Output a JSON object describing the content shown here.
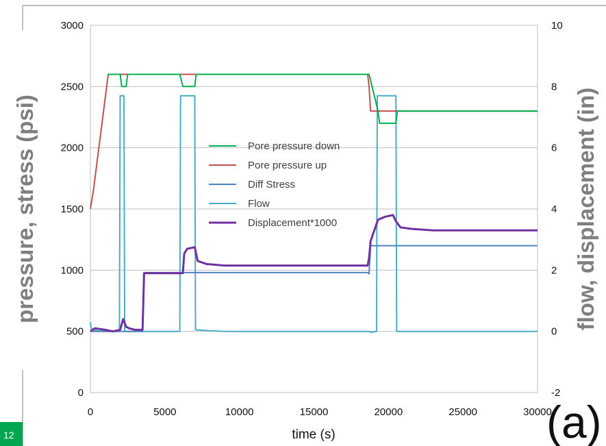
{
  "slide_number": "12",
  "panel_label": "(a)",
  "chart_data": {
    "type": "line",
    "xlabel": "time (s)",
    "ylabel_left": "pressure, stress (psi)",
    "ylabel_right": "flow, displacement (in)",
    "xlim": [
      0,
      30000
    ],
    "ylim_left": [
      0,
      3000
    ],
    "ylim_right": [
      -2,
      10
    ],
    "x_ticks": [
      "0",
      "5000",
      "10000",
      "15000",
      "20000",
      "25000",
      "30000"
    ],
    "y_left_ticks": [
      "0",
      "500",
      "1000",
      "1500",
      "2000",
      "2500",
      "3000"
    ],
    "y_right_ticks": [
      "-2",
      "0",
      "2",
      "4",
      "6",
      "8",
      "10"
    ],
    "grid": true,
    "legend_position": "center",
    "series": [
      {
        "name": "Pore pressure down",
        "axis": "left",
        "color": "#00b050",
        "x": [
          1200,
          2000,
          2100,
          2400,
          2500,
          6000,
          6200,
          7000,
          7100,
          18700,
          19300,
          19400,
          20500,
          20600,
          30000
        ],
        "y": [
          2600,
          2600,
          2500,
          2500,
          2600,
          2600,
          2500,
          2500,
          2600,
          2600,
          2300,
          2200,
          2200,
          2300,
          2300
        ]
      },
      {
        "name": "Pore pressure up",
        "axis": "left",
        "color": "#c0504d",
        "x": [
          0,
          200,
          1200,
          18600,
          18700,
          18800,
          19000,
          30000
        ],
        "y": [
          1500,
          1650,
          2600,
          2600,
          2500,
          2300,
          2300,
          2300
        ]
      },
      {
        "name": "Diff Stress",
        "axis": "left",
        "color": "#4f81bd",
        "x": [
          0,
          3500,
          3600,
          6200,
          6300,
          18600,
          18700,
          18800,
          30000
        ],
        "y": [
          500,
          500,
          980,
          980,
          980,
          980,
          970,
          1200,
          1200
        ]
      },
      {
        "name": "Flow",
        "axis": "right",
        "color": "#4bacc6",
        "x": [
          0,
          50,
          200,
          500,
          1000,
          1500,
          1950,
          2000,
          2250,
          2300,
          6000,
          6050,
          7000,
          7050,
          8000,
          9000,
          18700,
          18800,
          19200,
          19250,
          20500,
          20550,
          30000
        ],
        "y": [
          0.3,
          0.1,
          0.05,
          0.02,
          0,
          0,
          0,
          7.7,
          7.7,
          0,
          0,
          7.7,
          7.7,
          0.05,
          0.02,
          0,
          0,
          -0.03,
          0,
          7.7,
          7.7,
          0,
          0
        ]
      },
      {
        "name": "Displacement*1000",
        "axis": "right",
        "color": "#7030a0",
        "x": [
          0,
          300,
          1000,
          1500,
          2000,
          2200,
          2400,
          2600,
          3000,
          3500,
          3600,
          5000,
          6200,
          6300,
          6500,
          7000,
          7200,
          7800,
          9000,
          12000,
          18600,
          18700,
          18800,
          19300,
          19800,
          20300,
          20500,
          20800,
          21500,
          23000,
          30000
        ],
        "y": [
          0,
          0.1,
          0.05,
          0,
          0.05,
          0.4,
          0.15,
          0.1,
          0.05,
          0.05,
          1.9,
          1.9,
          1.9,
          2.55,
          2.7,
          2.75,
          2.3,
          2.2,
          2.15,
          2.15,
          2.15,
          2.4,
          2.95,
          3.65,
          3.75,
          3.8,
          3.6,
          3.4,
          3.35,
          3.3,
          3.3
        ]
      }
    ]
  }
}
